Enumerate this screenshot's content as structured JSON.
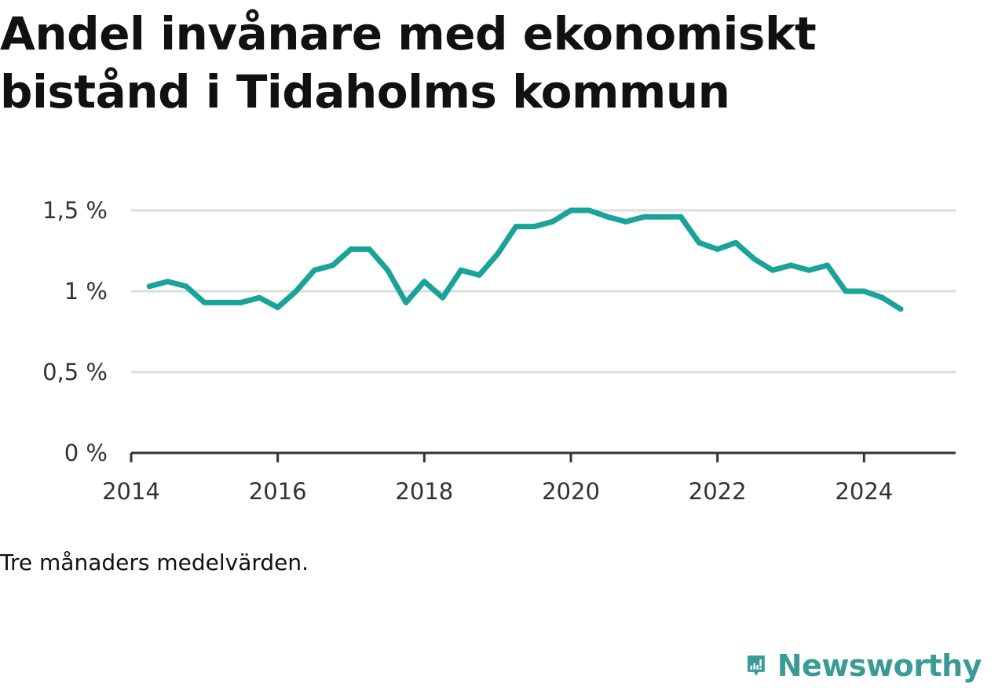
{
  "title": "Andel invånare med ekonomiskt bistånd i Tidaholms kommun",
  "note": "Tre månaders medelvärden.",
  "brand": {
    "name": "Newsworthy",
    "logo_icon": "bar-chart-speech-bubble-icon",
    "color": "#3a9b96"
  },
  "colors": {
    "line": "#1aa399",
    "grid": "#dddddd",
    "axis": "#333333"
  },
  "chart_data": {
    "type": "line",
    "title": "Andel invånare med ekonomiskt bistånd i Tidaholms kommun",
    "xlabel": "",
    "ylabel": "",
    "ylim": [
      0,
      1.5
    ],
    "grid": true,
    "y_ticks": [
      {
        "value": 0,
        "label": "0 %"
      },
      {
        "value": 0.5,
        "label": "0,5 %"
      },
      {
        "value": 1,
        "label": "1 %"
      },
      {
        "value": 1.5,
        "label": "1,5 %"
      }
    ],
    "x_ticks": [
      {
        "value": "2014",
        "label": "2014"
      },
      {
        "value": "2016",
        "label": "2016"
      },
      {
        "value": "2018",
        "label": "2018"
      },
      {
        "value": "2020",
        "label": "2020"
      },
      {
        "value": "2022",
        "label": "2022"
      },
      {
        "value": "2024",
        "label": "2024"
      }
    ],
    "x_domain": [
      "2014-01",
      "2025-04"
    ],
    "series": [
      {
        "points": [
          [
            "2014-04",
            1.03
          ],
          [
            "2014-07",
            1.06
          ],
          [
            "2014-10",
            1.03
          ],
          [
            "2015-01",
            0.93
          ],
          [
            "2015-04",
            0.93
          ],
          [
            "2015-07",
            0.93
          ],
          [
            "2015-10",
            0.96
          ],
          [
            "2016-01",
            0.9
          ],
          [
            "2016-04",
            1.0
          ],
          [
            "2016-07",
            1.13
          ],
          [
            "2016-10",
            1.16
          ],
          [
            "2017-01",
            1.26
          ],
          [
            "2017-04",
            1.26
          ],
          [
            "2017-07",
            1.13
          ],
          [
            "2017-10",
            0.93
          ],
          [
            "2018-01",
            1.06
          ],
          [
            "2018-04",
            0.96
          ],
          [
            "2018-07",
            1.13
          ],
          [
            "2018-10",
            1.1
          ],
          [
            "2019-01",
            1.23
          ],
          [
            "2019-04",
            1.4
          ],
          [
            "2019-07",
            1.4
          ],
          [
            "2019-10",
            1.43
          ],
          [
            "2020-01",
            1.5
          ],
          [
            "2020-04",
            1.5
          ],
          [
            "2020-07",
            1.46
          ],
          [
            "2020-10",
            1.43
          ],
          [
            "2021-01",
            1.46
          ],
          [
            "2021-04",
            1.46
          ],
          [
            "2021-07",
            1.46
          ],
          [
            "2021-10",
            1.3
          ],
          [
            "2022-01",
            1.26
          ],
          [
            "2022-04",
            1.3
          ],
          [
            "2022-07",
            1.2
          ],
          [
            "2022-10",
            1.13
          ],
          [
            "2023-01",
            1.16
          ],
          [
            "2023-04",
            1.13
          ],
          [
            "2023-07",
            1.16
          ],
          [
            "2023-10",
            1.0
          ],
          [
            "2024-01",
            1.0
          ],
          [
            "2024-04",
            0.96
          ],
          [
            "2024-07",
            0.89
          ]
        ]
      }
    ]
  }
}
